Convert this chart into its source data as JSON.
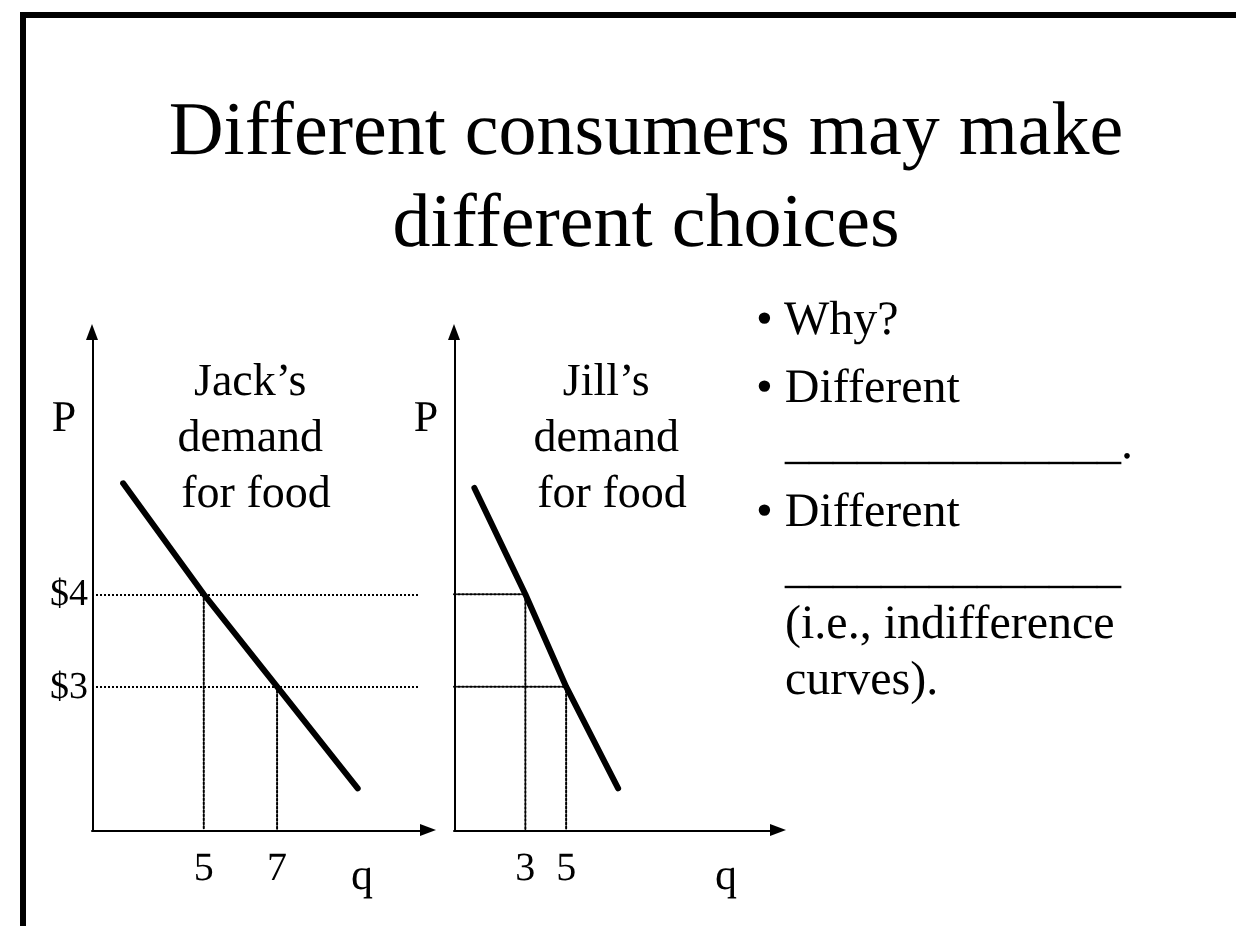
{
  "chart_data": [
    {
      "type": "line",
      "title": "Different consumers may make different choices",
      "xlabel": "q",
      "ylabel": "P",
      "xlim": [
        1.95,
        10.9
      ],
      "ylim": [
        1.45,
        6.75
      ],
      "xticks": [
        5,
        7
      ],
      "yticks": [
        {
          "value": 3,
          "label": "$3"
        },
        {
          "value": 4,
          "label": "$4"
        }
      ],
      "grid": "y",
      "series": [
        {
          "name": "Jack’s demand for food",
          "color": "#000000",
          "x": [
            2.8,
            5,
            7,
            9.2
          ],
          "values": [
            5.2,
            4,
            3,
            1.9
          ]
        },
        {
          "color": "#000000",
          "line_style": "dotted",
          "x": [
            5,
            5
          ],
          "values": [
            4,
            1.45
          ]
        },
        {
          "color": "#000000",
          "line_style": "dotted",
          "x": [
            7,
            7
          ],
          "values": [
            3,
            1.45
          ]
        }
      ]
    },
    {
      "type": "line",
      "xlabel": "q",
      "ylabel": "P",
      "xlim": [
        -0.5,
        15
      ],
      "ylim": [
        1.45,
        6.75
      ],
      "xticks": [
        3,
        5
      ],
      "tick_labels": "x",
      "series": [
        {
          "name": "Jill’s demand for food",
          "color": "#000000",
          "x": [
            0.5,
            3,
            5,
            7.55
          ],
          "values": [
            5.15,
            4,
            3,
            1.9
          ]
        },
        {
          "color": "#000000",
          "line_style": "dotted",
          "x": [
            -0.5,
            3,
            3
          ],
          "values": [
            4,
            4,
            1.45
          ]
        },
        {
          "color": "#000000",
          "line_style": "dotted",
          "x": [
            -0.5,
            5,
            5
          ],
          "values": [
            3,
            3,
            1.45
          ]
        }
      ]
    },
    {
      "type": "other",
      "annotations": [
        "• Why?",
        "• Different ______________.",
        "• Different ______________ (i.e., indifference curves)."
      ]
    }
  ]
}
